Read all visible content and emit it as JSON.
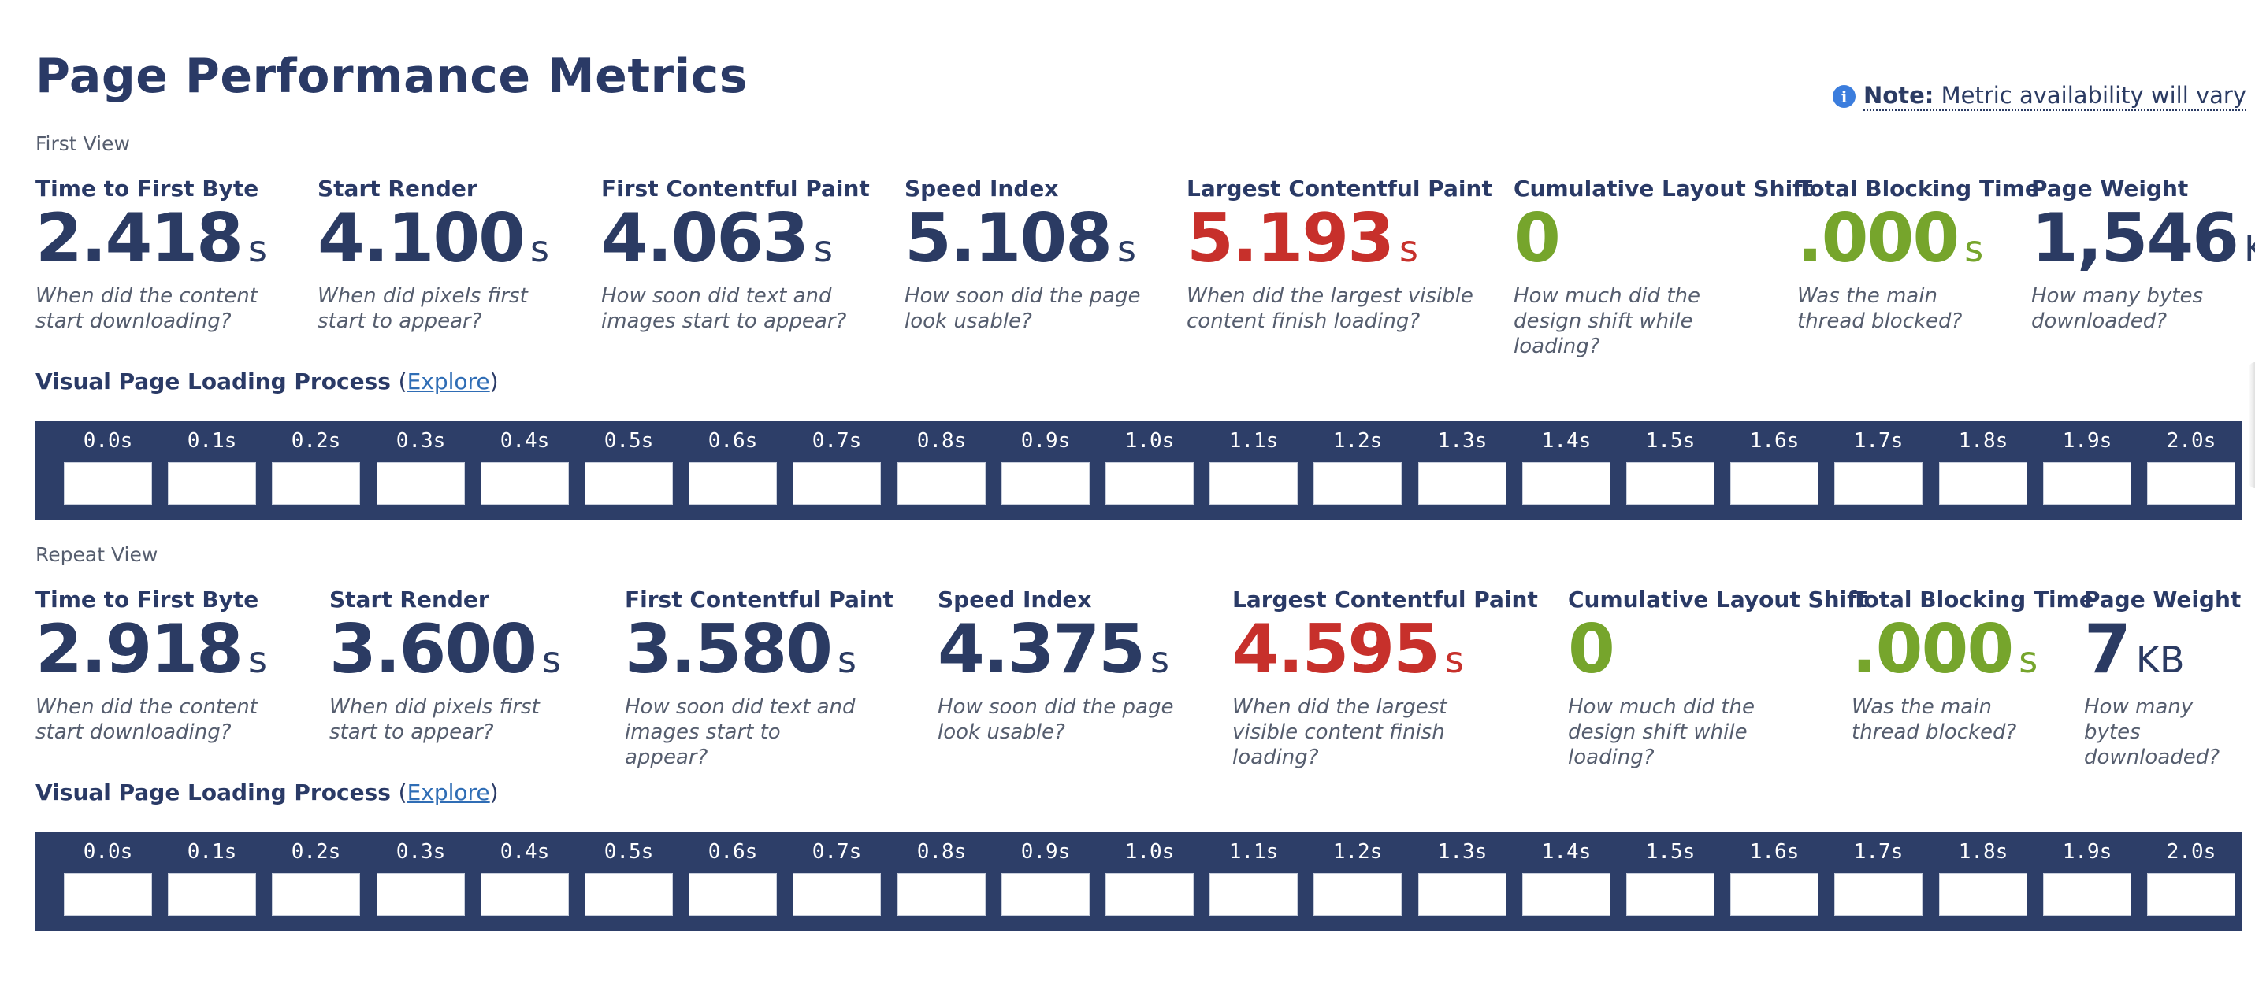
{
  "title": "Page Performance Metrics",
  "note": {
    "icon": "info-icon",
    "label": "Note:",
    "text": "Metric availability will vary"
  },
  "colors": {
    "navy": "#2b3b63",
    "red": "#c7302b",
    "green": "#76a52c",
    "filmstrip_bg": "#2d3e68",
    "link": "#2f6db5"
  },
  "first_view": {
    "label": "First View",
    "metrics": [
      {
        "name": "Time to First Byte",
        "value": "2.418",
        "unit": "s",
        "color": "navy",
        "desc": "When did the content start downloading?"
      },
      {
        "name": "Start Render",
        "value": "4.100",
        "unit": "s",
        "color": "navy",
        "desc": "When did pixels first start to appear?"
      },
      {
        "name": "First Contentful Paint",
        "value": "4.063",
        "unit": "s",
        "color": "navy",
        "desc": "How soon did text and images start to appear?"
      },
      {
        "name": "Speed Index",
        "value": "5.108",
        "unit": "s",
        "color": "navy",
        "desc": "How soon did the page look usable?"
      },
      {
        "name": "Largest Contentful Paint",
        "value": "5.193",
        "unit": "s",
        "color": "red",
        "desc": "When did the largest visible content finish loading?"
      },
      {
        "name": "Cumulative Layout Shift",
        "value": "0",
        "unit": "",
        "color": "green",
        "desc": "How much did the design shift while loading?"
      },
      {
        "name": "Total Blocking Time",
        "value": ".000",
        "unit": "s",
        "color": "green",
        "desc": "Was the main thread blocked?"
      },
      {
        "name": "Page Weight",
        "value": "1,546",
        "unit": "KB",
        "color": "navy",
        "desc": "How many bytes downloaded?"
      }
    ],
    "visual": {
      "heading": "Visual Page Loading Process",
      "paren_open": "(",
      "link": "Explore",
      "paren_close": ")"
    },
    "frames": [
      "0.0s",
      "0.1s",
      "0.2s",
      "0.3s",
      "0.4s",
      "0.5s",
      "0.6s",
      "0.7s",
      "0.8s",
      "0.9s",
      "1.0s",
      "1.1s",
      "1.2s",
      "1.3s",
      "1.4s",
      "1.5s",
      "1.6s",
      "1.7s",
      "1.8s",
      "1.9s",
      "2.0s"
    ]
  },
  "repeat_view": {
    "label": "Repeat View",
    "metrics": [
      {
        "name": "Time to First Byte",
        "value": "2.918",
        "unit": "s",
        "color": "navy",
        "desc": "When did the content start downloading?"
      },
      {
        "name": "Start Render",
        "value": "3.600",
        "unit": "s",
        "color": "navy",
        "desc": "When did pixels first start to appear?"
      },
      {
        "name": "First Contentful Paint",
        "value": "3.580",
        "unit": "s",
        "color": "navy",
        "desc": "How soon did text and images start to appear?"
      },
      {
        "name": "Speed Index",
        "value": "4.375",
        "unit": "s",
        "color": "navy",
        "desc": "How soon did the page look usable?"
      },
      {
        "name": "Largest Contentful Paint",
        "value": "4.595",
        "unit": "s",
        "color": "red",
        "desc": "When did the largest visible content finish loading?"
      },
      {
        "name": "Cumulative Layout Shift",
        "value": "0",
        "unit": "",
        "color": "green",
        "desc": "How much did the design shift while loading?"
      },
      {
        "name": "Total Blocking Time",
        "value": ".000",
        "unit": "s",
        "color": "green",
        "desc": "Was the main thread blocked?"
      },
      {
        "name": "Page Weight",
        "value": "7",
        "unit": "KB",
        "color": "navy",
        "desc": "How many bytes downloaded?"
      }
    ],
    "visual": {
      "heading": "Visual Page Loading Process",
      "paren_open": "(",
      "link": "Explore",
      "paren_close": ")"
    },
    "frames": [
      "0.0s",
      "0.1s",
      "0.2s",
      "0.3s",
      "0.4s",
      "0.5s",
      "0.6s",
      "0.7s",
      "0.8s",
      "0.9s",
      "1.0s",
      "1.1s",
      "1.2s",
      "1.3s",
      "1.4s",
      "1.5s",
      "1.6s",
      "1.7s",
      "1.8s",
      "1.9s",
      "2.0s"
    ]
  }
}
